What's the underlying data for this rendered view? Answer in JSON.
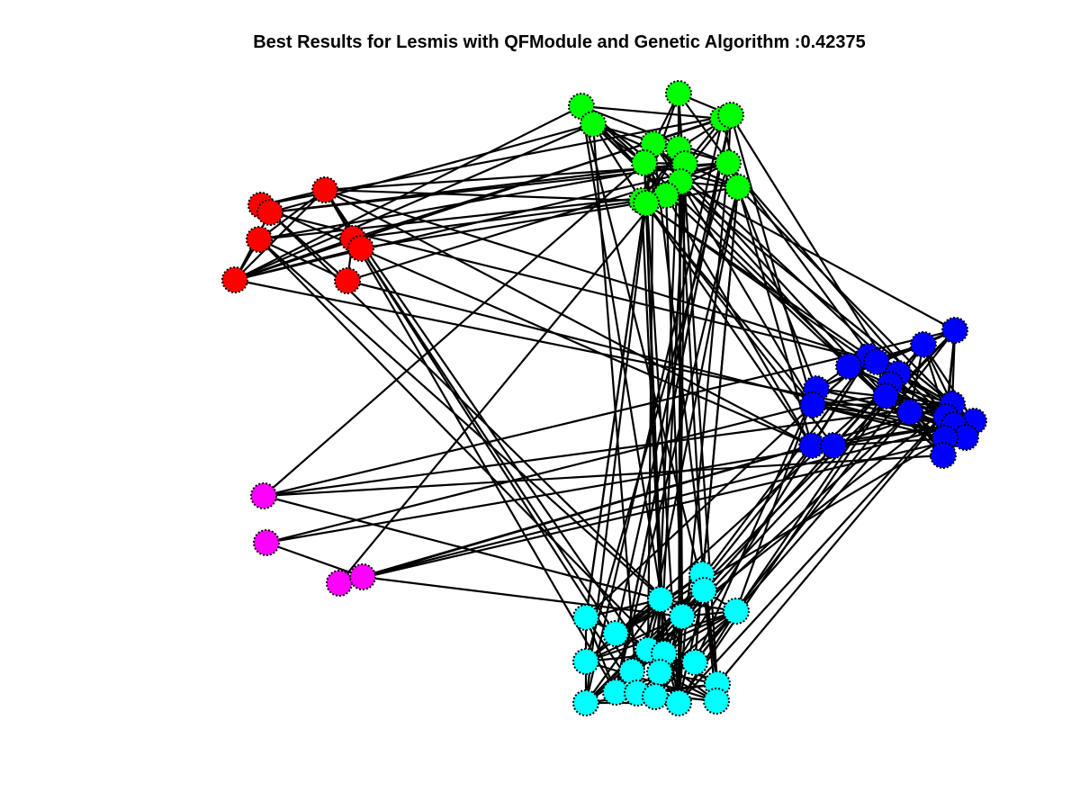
{
  "title": "Best Results for Lesmis with QFModule and Genetic Algorithm :0.42375",
  "communities": [
    {
      "name": "red",
      "color": "#ff0000"
    },
    {
      "name": "green",
      "color": "#00ff00"
    },
    {
      "name": "blue",
      "color": "#0000ff"
    },
    {
      "name": "magenta",
      "color": "#ff00ff"
    },
    {
      "name": "cyan",
      "color": "#00ffff"
    }
  ]
}
